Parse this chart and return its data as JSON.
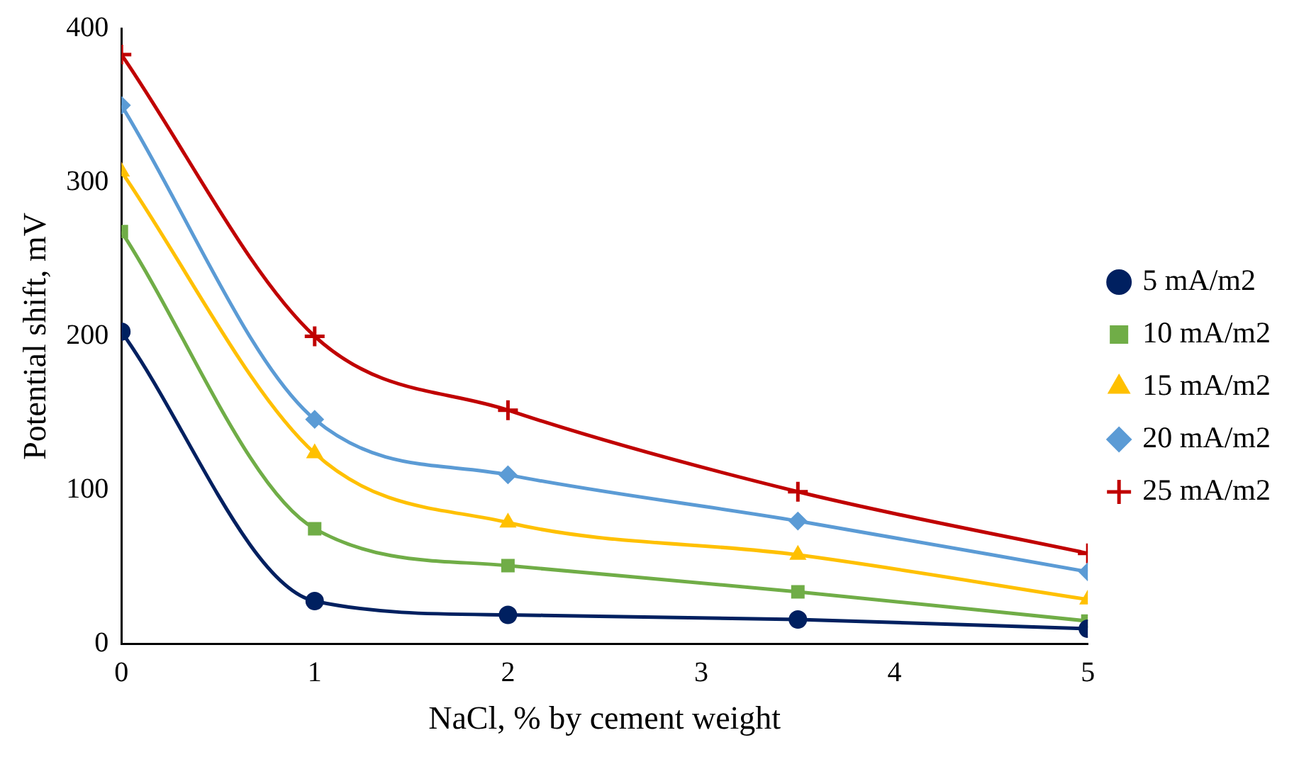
{
  "chart_data": {
    "type": "line",
    "xlabel": "NaCl, % by cement weight",
    "ylabel": "Potential shift, mV",
    "x": [
      0,
      1,
      2,
      3.5,
      5
    ],
    "xlim": [
      0,
      5
    ],
    "xticks": [
      0,
      1,
      2,
      3,
      4,
      5
    ],
    "ylim": [
      0,
      400
    ],
    "yticks": [
      0,
      100,
      200,
      300,
      400
    ],
    "grid": false,
    "legend": "right",
    "line_style": "solid",
    "series": [
      {
        "name": "5 mA/m2",
        "color": "#002060",
        "marker": "circle",
        "values": [
          203,
          28,
          19,
          16,
          10
        ]
      },
      {
        "name": "10 mA/m2",
        "color": "#70ad47",
        "marker": "square",
        "values": [
          268,
          75,
          51,
          34,
          15
        ]
      },
      {
        "name": "15 mA/m2",
        "color": "#ffc000",
        "marker": "triangle",
        "values": [
          307,
          124,
          79,
          58,
          29
        ]
      },
      {
        "name": "20 mA/m2",
        "color": "#5b9bd5",
        "marker": "diamond",
        "values": [
          350,
          146,
          110,
          80,
          47
        ]
      },
      {
        "name": "25 mA/m2",
        "color": "#c00000",
        "marker": "cross",
        "values": [
          383,
          200,
          152,
          99,
          59
        ]
      }
    ]
  }
}
